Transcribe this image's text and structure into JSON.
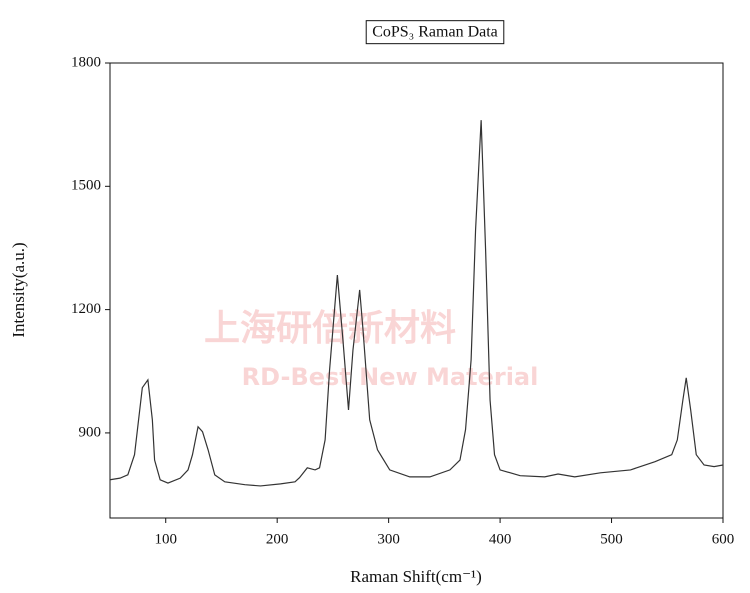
{
  "chart_data": {
    "type": "line",
    "title": "CoPS₃ Raman Data",
    "x_label": "Raman Shift(cm⁻¹)",
    "y_label": "Intensity(a.u.)",
    "watermark": [
      "上海研倍新材料",
      "RD-Best New Material"
    ],
    "color": "#333333",
    "xlim": [
      50,
      600
    ],
    "xticks": [
      100,
      200,
      300,
      400,
      500,
      600
    ],
    "ylim": [
      693,
      1800
    ],
    "yticks": [
      900,
      1200,
      1500,
      1800
    ],
    "x": [
      50,
      59,
      66,
      72,
      79,
      84,
      88,
      90,
      95,
      102,
      113,
      120,
      124,
      129,
      133,
      138,
      144,
      153,
      171,
      185,
      203,
      216,
      220,
      227,
      234,
      238,
      243,
      247,
      254,
      259,
      264,
      268,
      274,
      277,
      283,
      290,
      301,
      319,
      337,
      355,
      364,
      369,
      374,
      378,
      383,
      387,
      391,
      395,
      400,
      418,
      440,
      452,
      467,
      490,
      517,
      539,
      554,
      559,
      564,
      567,
      571,
      576,
      583,
      592,
      600
    ],
    "values": [
      786,
      790,
      798,
      847,
      1010,
      1029,
      932,
      834,
      786,
      778,
      790,
      810,
      847,
      915,
      903,
      859,
      798,
      781,
      774,
      771,
      776,
      781,
      791,
      815,
      810,
      815,
      883,
      1053,
      1284,
      1126,
      956,
      1102,
      1248,
      1151,
      932,
      859,
      810,
      793,
      793,
      810,
      834,
      908,
      1078,
      1394,
      1661,
      1345,
      980,
      847,
      810,
      796,
      793,
      800,
      793,
      803,
      810,
      830,
      847,
      883,
      980,
      1034,
      956,
      847,
      822,
      818,
      822
    ]
  }
}
